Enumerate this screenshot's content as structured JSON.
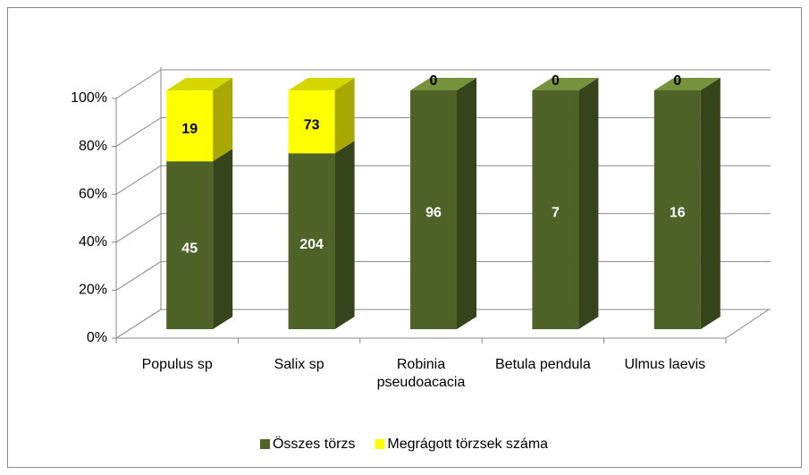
{
  "chart_data": {
    "type": "bar",
    "stacking": "percent",
    "categories": [
      "Populus sp",
      "Salix sp",
      "Robinia pseudoacacia",
      "Betula pendula",
      "Ulmus laevis"
    ],
    "series": [
      {
        "name": "Összes törzs",
        "color": "#4f6228",
        "side_color": "#36441b",
        "top_color": "#76923c",
        "label_color": "#ffffff",
        "values": [
          45,
          204,
          96,
          7,
          16
        ]
      },
      {
        "name": "Megrágott törzsek száma",
        "color": "#ffff00",
        "side_color": "#a8a800",
        "top_color": "#d6d600",
        "label_color": "#000000",
        "values": [
          19,
          73,
          0,
          0,
          0
        ]
      }
    ],
    "ylim": [
      0,
      100
    ],
    "yticks": [
      {
        "value": 0,
        "label": "0%"
      },
      {
        "value": 20,
        "label": "20%"
      },
      {
        "value": 40,
        "label": "40%"
      },
      {
        "value": 60,
        "label": "60%"
      },
      {
        "value": 80,
        "label": "80%"
      },
      {
        "value": 100,
        "label": "100%"
      }
    ],
    "grid": true,
    "legend": "bottom"
  }
}
